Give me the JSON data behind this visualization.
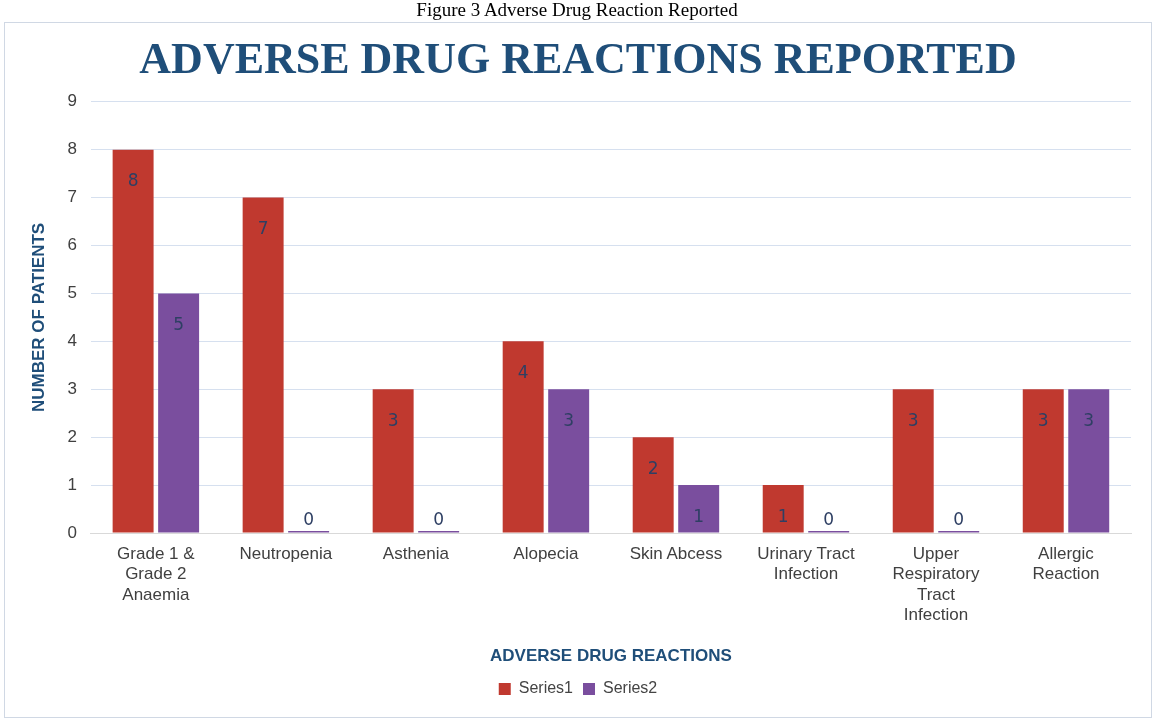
{
  "chart_data": {
    "type": "bar",
    "title": "ADVERSE DRUG REACTIONS REPORTED",
    "xlabel": "ADVERSE DRUG REACTIONS",
    "ylabel": "NUMBER OF PATIENTS",
    "annotations": [
      "Figure 3 Adverse Drug Reaction Reported"
    ],
    "categories": [
      "Grade 1 & Grade 2 Anaemia",
      "Neutropenia",
      "Asthenia",
      "Alopecia",
      "Skin Abcess",
      "Urinary Tract Infection",
      "Upper Respiratory Tract Infection",
      "Allergic Reaction"
    ],
    "series": [
      {
        "name": "Series1",
        "color": "#c0392f",
        "values": [
          8,
          7,
          3,
          4,
          2,
          1,
          3,
          3
        ]
      },
      {
        "name": "Series2",
        "color": "#7a4e9e",
        "values": [
          5,
          0,
          0,
          3,
          1,
          0,
          0,
          3
        ]
      }
    ],
    "ylim": [
      0,
      9
    ],
    "yticks": [
      0,
      1,
      2,
      3,
      4,
      5,
      6,
      7,
      8,
      9
    ],
    "grid": "y",
    "legend": "bottom",
    "data_labels": true
  }
}
